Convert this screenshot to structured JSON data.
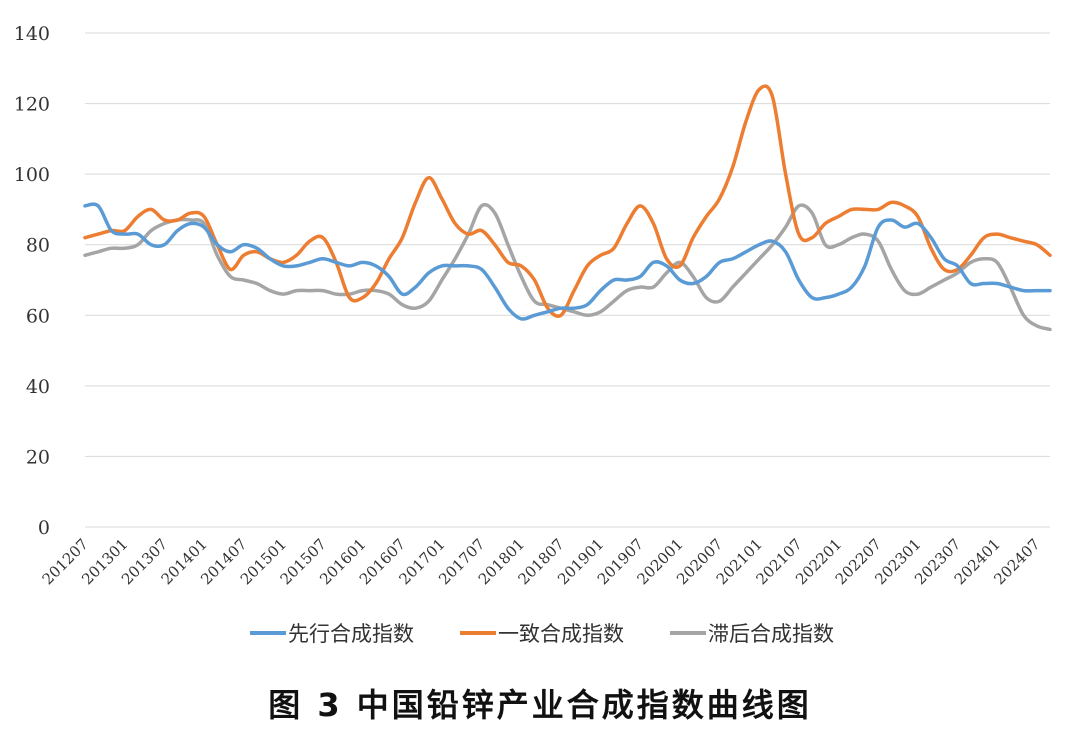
{
  "caption": "图 3 中国铅锌产业合成指数曲线图",
  "colors": {
    "leading": "#5b9bd5",
    "coincident": "#ed7d31",
    "lagging": "#a5a5a5",
    "grid": "#d9d9d9",
    "text": "#333333"
  },
  "chart_data": {
    "type": "line",
    "title": "",
    "xlabel": "",
    "ylabel": "",
    "ylim": [
      0,
      140
    ],
    "yticks": [
      0,
      20,
      40,
      60,
      80,
      100,
      120,
      140
    ],
    "x_tick_labels": [
      "201207",
      "201301",
      "201307",
      "201401",
      "201407",
      "201501",
      "201507",
      "201601",
      "201607",
      "201701",
      "201707",
      "201801",
      "201807",
      "201901",
      "201907",
      "202001",
      "202007",
      "202101",
      "202107",
      "202201",
      "202207",
      "202301",
      "202307",
      "202401",
      "202407"
    ],
    "grid": "horizontal",
    "legend_position": "bottom",
    "x_points": [
      "201207",
      "201209",
      "201211",
      "201301",
      "201303",
      "201305",
      "201307",
      "201309",
      "201311",
      "201401",
      "201403",
      "201405",
      "201407",
      "201409",
      "201411",
      "201501",
      "201503",
      "201505",
      "201507",
      "201509",
      "201511",
      "201601",
      "201603",
      "201605",
      "201607",
      "201609",
      "201611",
      "201701",
      "201703",
      "201705",
      "201707",
      "201709",
      "201711",
      "201801",
      "201803",
      "201805",
      "201807",
      "201809",
      "201811",
      "201901",
      "201903",
      "201905",
      "201907",
      "201909",
      "201911",
      "202001",
      "202003",
      "202005",
      "202007",
      "202009",
      "202011",
      "202101",
      "202103",
      "202105",
      "202107",
      "202109",
      "202111",
      "202201",
      "202203",
      "202205",
      "202207",
      "202209",
      "202211",
      "202301",
      "202303",
      "202305",
      "202307",
      "202309",
      "202311",
      "202401",
      "202403",
      "202405",
      "202407",
      "202409"
    ],
    "series": [
      {
        "name": "先行合成指数",
        "color": "#5b9bd5",
        "values": [
          91,
          91,
          84,
          83,
          83,
          80,
          80,
          84,
          86,
          85,
          80,
          78,
          80,
          79,
          76,
          74,
          74,
          75,
          76,
          75,
          74,
          75,
          74,
          71,
          66,
          68,
          72,
          74,
          74,
          74,
          73,
          68,
          62,
          59,
          60,
          61,
          62,
          62,
          63,
          67,
          70,
          70,
          71,
          75,
          74,
          70,
          69,
          71,
          75,
          76,
          78,
          80,
          81,
          78,
          70,
          65,
          65,
          66,
          68,
          74,
          85,
          87,
          85,
          86,
          82,
          76,
          74,
          69,
          69,
          69,
          68,
          67,
          67,
          67
        ]
      },
      {
        "name": "一致合成指数",
        "color": "#ed7d31",
        "values": [
          82,
          83,
          84,
          84,
          88,
          90,
          87,
          87,
          89,
          88,
          80,
          73,
          77,
          78,
          76,
          75,
          77,
          81,
          82,
          75,
          65,
          65,
          69,
          76,
          82,
          92,
          99,
          93,
          86,
          83,
          84,
          80,
          75,
          74,
          70,
          62,
          60,
          67,
          74,
          77,
          79,
          86,
          91,
          86,
          76,
          74,
          82,
          88,
          93,
          102,
          115,
          124,
          122,
          100,
          83,
          82,
          86,
          88,
          90,
          90,
          90,
          92,
          91,
          88,
          79,
          73,
          73,
          77,
          82,
          83,
          82,
          81,
          80,
          77
        ]
      },
      {
        "name": "滞后合成指数",
        "color": "#a5a5a5",
        "values": [
          77,
          78,
          79,
          79,
          80,
          84,
          86,
          87,
          87,
          86,
          77,
          71,
          70,
          69,
          67,
          66,
          67,
          67,
          67,
          66,
          66,
          67,
          67,
          66,
          63,
          62,
          64,
          70,
          76,
          83,
          91,
          89,
          80,
          71,
          64,
          63,
          62,
          61,
          60,
          61,
          64,
          67,
          68,
          68,
          72,
          75,
          71,
          65,
          64,
          68,
          72,
          76,
          80,
          85,
          91,
          89,
          80,
          80,
          82,
          83,
          81,
          73,
          67,
          66,
          68,
          70,
          72,
          75,
          76,
          75,
          68,
          60,
          57,
          56
        ]
      }
    ]
  }
}
